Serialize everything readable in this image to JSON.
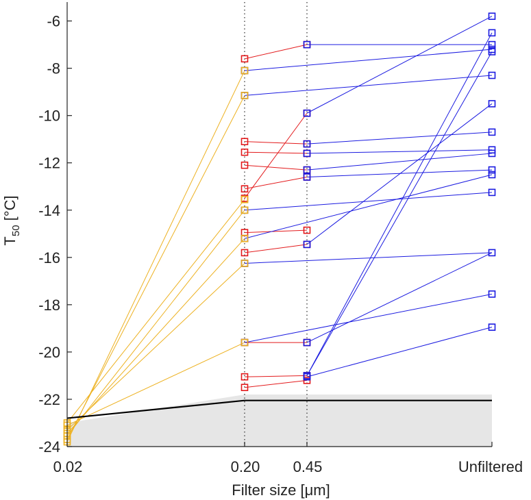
{
  "chart_data": {
    "type": "line",
    "xlabel": "Filter size [μm]",
    "ylabel": {
      "main": "T",
      "sub": "50",
      "unit": " [°C]"
    },
    "x_categories": [
      "0.02",
      "0.20",
      "0.45",
      "Unfiltered"
    ],
    "ylim": [
      -24,
      -5.2
    ],
    "yticks": [
      -24,
      -22,
      -20,
      -18,
      -16,
      -14,
      -12,
      -10,
      -8,
      -6
    ],
    "grid": false,
    "vertical_dotted_lines_at": [
      "0.20",
      "0.45"
    ],
    "colors": {
      "yellow": "#EDB120",
      "red": "#E31A1C",
      "blue": "#1A1AE0",
      "band": "#E6E6E6",
      "line": "#000000"
    },
    "background_band": {
      "x": [
        "0.02",
        "0.20",
        "0.45",
        "Unfiltered"
      ],
      "upper": [
        -23.0,
        -21.8,
        -21.8,
        -21.8
      ]
    },
    "black_line": {
      "x": [
        "0.02",
        "0.20",
        "0.45",
        "Unfiltered"
      ],
      "y": [
        -22.8,
        -22.05,
        -22.05,
        -22.05
      ]
    },
    "segments": [
      {
        "color": "yellow",
        "from": [
          "0.02",
          -23.8
        ],
        "to": [
          "0.20",
          -8.1
        ]
      },
      {
        "color": "yellow",
        "from": [
          "0.02",
          -23.7
        ],
        "to": [
          "0.20",
          -9.15
        ]
      },
      {
        "color": "yellow",
        "from": [
          "0.02",
          -23.55
        ],
        "to": [
          "0.20",
          -14.0
        ]
      },
      {
        "color": "yellow",
        "from": [
          "0.02",
          -23.45
        ],
        "to": [
          "0.20",
          -15.2
        ]
      },
      {
        "color": "yellow",
        "from": [
          "0.02",
          -23.3
        ],
        "to": [
          "0.20",
          -16.25
        ]
      },
      {
        "color": "yellow",
        "from": [
          "0.02",
          -23.1
        ],
        "to": [
          "0.20",
          -19.6
        ]
      },
      {
        "color": "yellow",
        "from": [
          "0.02",
          -23.0
        ],
        "to": [
          "0.20",
          -13.55
        ]
      },
      {
        "color": "red",
        "from": [
          "0.20",
          -7.6
        ],
        "to": [
          "0.45",
          -7.0
        ]
      },
      {
        "color": "red",
        "from": [
          "0.20",
          -11.1
        ],
        "to": [
          "0.45",
          -11.2
        ]
      },
      {
        "color": "red",
        "from": [
          "0.20",
          -11.55
        ],
        "to": [
          "0.45",
          -11.6
        ]
      },
      {
        "color": "red",
        "from": [
          "0.20",
          -12.1
        ],
        "to": [
          "0.45",
          -12.3
        ]
      },
      {
        "color": "red",
        "from": [
          "0.20",
          -13.1
        ],
        "to": [
          "0.45",
          -12.6
        ]
      },
      {
        "color": "red",
        "from": [
          "0.20",
          -13.5
        ],
        "to": [
          "0.45",
          -9.9
        ]
      },
      {
        "color": "red",
        "from": [
          "0.20",
          -14.95
        ],
        "to": [
          "0.45",
          -14.85
        ]
      },
      {
        "color": "red",
        "from": [
          "0.20",
          -15.8
        ],
        "to": [
          "0.45",
          -15.45
        ]
      },
      {
        "color": "red",
        "from": [
          "0.20",
          -19.6
        ],
        "to": [
          "0.45",
          -19.6
        ]
      },
      {
        "color": "red",
        "from": [
          "0.20",
          -21.05
        ],
        "to": [
          "0.45",
          -21.0
        ]
      },
      {
        "color": "red",
        "from": [
          "0.20",
          -21.5
        ],
        "to": [
          "0.45",
          -21.2
        ]
      },
      {
        "color": "blue",
        "from": [
          "0.45",
          -7.0
        ],
        "to": [
          "Unfiltered",
          -7.0
        ]
      },
      {
        "color": "blue",
        "from": [
          "0.20",
          -8.1
        ],
        "to": [
          "Unfiltered",
          -7.2
        ]
      },
      {
        "color": "blue",
        "from": [
          "0.20",
          -9.15
        ],
        "to": [
          "Unfiltered",
          -8.3
        ]
      },
      {
        "color": "blue",
        "from": [
          "0.45",
          -9.9
        ],
        "to": [
          "Unfiltered",
          -5.8
        ]
      },
      {
        "color": "blue",
        "from": [
          "0.45",
          -11.2
        ],
        "to": [
          "Unfiltered",
          -10.7
        ]
      },
      {
        "color": "blue",
        "from": [
          "0.45",
          -11.6
        ],
        "to": [
          "Unfiltered",
          -11.45
        ]
      },
      {
        "color": "blue",
        "from": [
          "0.45",
          -12.3
        ],
        "to": [
          "Unfiltered",
          -11.6
        ]
      },
      {
        "color": "blue",
        "from": [
          "0.45",
          -12.6
        ],
        "to": [
          "Unfiltered",
          -12.3
        ]
      },
      {
        "color": "blue",
        "from": [
          "0.20",
          -14.0
        ],
        "to": [
          "Unfiltered",
          -13.25
        ]
      },
      {
        "color": "blue",
        "from": [
          "0.20",
          -15.2
        ],
        "to": [
          "Unfiltered",
          -12.5
        ]
      },
      {
        "color": "blue",
        "from": [
          "0.45",
          -15.45
        ],
        "to": [
          "Unfiltered",
          -9.5
        ]
      },
      {
        "color": "blue",
        "from": [
          "0.20",
          -16.25
        ],
        "to": [
          "Unfiltered",
          -15.8
        ]
      },
      {
        "color": "blue",
        "from": [
          "0.20",
          -19.6
        ],
        "to": [
          "Unfiltered",
          -17.55
        ]
      },
      {
        "color": "blue",
        "from": [
          "0.45",
          -19.6
        ],
        "to": [
          "Unfiltered",
          -15.8
        ]
      },
      {
        "color": "blue",
        "from": [
          "0.45",
          -21.0
        ],
        "to": [
          "Unfiltered",
          -6.5
        ]
      },
      {
        "color": "blue",
        "from": [
          "0.45",
          -21.05
        ],
        "to": [
          "Unfiltered",
          -18.95
        ]
      },
      {
        "color": "blue",
        "from": [
          "0.45",
          -21.0
        ],
        "to": [
          "Unfiltered",
          -7.3
        ]
      }
    ]
  }
}
